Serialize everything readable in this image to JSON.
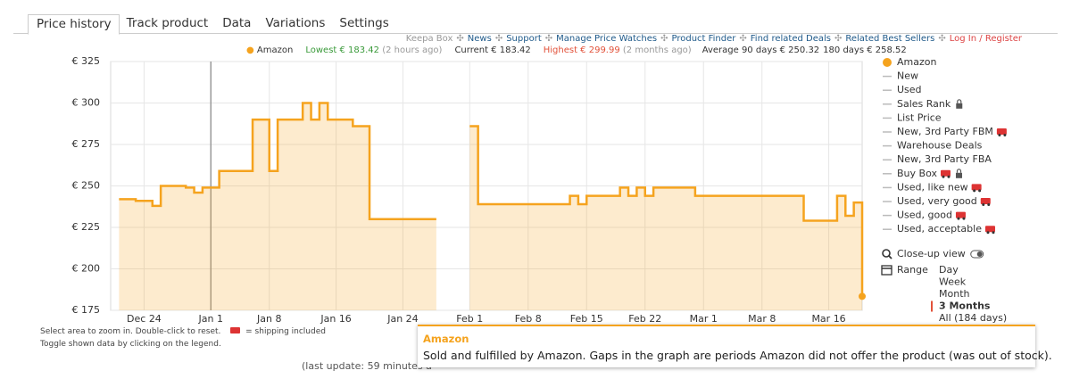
{
  "tabs": [
    "Price history",
    "Track product",
    "Data",
    "Variations",
    "Settings"
  ],
  "active_tab": 0,
  "top_links": [
    "Keepa Box",
    "News",
    "Support",
    "Manage Price Watches",
    "Product Finder",
    "Find related Deals",
    "Related Best Sellers",
    "Log In / Register"
  ],
  "stats": {
    "series": "Amazon",
    "lowest": "Lowest € 183.42",
    "lowest_time": "(2 hours ago)",
    "current": "Current € 183.42",
    "highest": "Highest € 299.99",
    "highest_time": "(2 months ago)",
    "average_90": "Average 90 days € 250.32",
    "average_180": "180 days € 258.52"
  },
  "chart_data": {
    "type": "line",
    "step": true,
    "area": true,
    "grid": true,
    "year_marker": "Jan 1",
    "x": [
      "Dec 21",
      "Dec 23",
      "Dec 25",
      "Dec 26",
      "Dec 29",
      "Dec 30",
      "Dec 31",
      "Jan 2",
      "Jan 6",
      "Jan 8",
      "Jan 9",
      "Jan 12",
      "Jan 13",
      "Jan 14",
      "Jan 15",
      "Jan 18",
      "Jan 20",
      "Jan 28",
      "Feb 1",
      "Feb 2",
      "Feb 13",
      "Feb 14",
      "Feb 15",
      "Feb 19",
      "Feb 20",
      "Feb 21",
      "Feb 22",
      "Feb 23",
      "Feb 28",
      "Mar 13",
      "Mar 17",
      "Mar 18",
      "Mar 19",
      "Mar 20"
    ],
    "series": [
      {
        "name": "Amazon",
        "color": "#f5a31e",
        "values": [
          242,
          241,
          238,
          250,
          249,
          246,
          249,
          259,
          290,
          259,
          290,
          300,
          290,
          300,
          290,
          286,
          230,
          null,
          286,
          239,
          244,
          239,
          244,
          249,
          244,
          249,
          244,
          249,
          244,
          229,
          244,
          232,
          240,
          183.42
        ]
      }
    ],
    "xlim": [
      "Dec 20",
      "Mar 20"
    ],
    "xticks": [
      "Dec 24",
      "Jan 1",
      "Jan 8",
      "Jan 16",
      "Jan 24",
      "Feb 1",
      "Feb 8",
      "Feb 15",
      "Feb 22",
      "Mar 1",
      "Mar 8",
      "Mar 16"
    ],
    "ylim": [
      175,
      325
    ],
    "yticks": [
      {
        "value": 175,
        "label": "€ 175"
      },
      {
        "value": 200,
        "label": "€ 200"
      },
      {
        "value": 225,
        "label": "€ 225"
      },
      {
        "value": 250,
        "label": "€ 250"
      },
      {
        "value": 275,
        "label": "€ 275"
      },
      {
        "value": 300,
        "label": "€ 300"
      },
      {
        "value": 325,
        "label": "€ 325"
      }
    ]
  },
  "legend_items": [
    {
      "label": "New",
      "shipping": false,
      "locked": false
    },
    {
      "label": "Used",
      "shipping": false,
      "locked": false
    },
    {
      "label": "Sales Rank",
      "shipping": false,
      "locked": true
    },
    {
      "label": "List Price",
      "shipping": false,
      "locked": false
    },
    {
      "label": "New, 3rd Party FBM",
      "shipping": true,
      "locked": false
    },
    {
      "label": "Warehouse Deals",
      "shipping": false,
      "locked": false
    },
    {
      "label": "New, 3rd Party FBA",
      "shipping": false,
      "locked": false
    },
    {
      "label": "Buy Box",
      "shipping": true,
      "locked": true
    },
    {
      "label": "Used, like new",
      "shipping": true,
      "locked": false
    },
    {
      "label": "Used, very good",
      "shipping": true,
      "locked": false
    },
    {
      "label": "Used, good",
      "shipping": true,
      "locked": false
    },
    {
      "label": "Used, acceptable",
      "shipping": true,
      "locked": false
    }
  ],
  "close_up": "Close-up view",
  "range": {
    "label": "Range",
    "options": [
      "Day",
      "Week",
      "Month",
      "3 Months",
      "All (184 days)"
    ],
    "active": 3
  },
  "notes": {
    "zoom": "Select area to zoom in. Double-click to reset.",
    "shipping": "= shipping included",
    "toggle": "Toggle shown data by clicking on the legend."
  },
  "tooltip": {
    "title": "Amazon",
    "text": "Sold and fulfilled by Amazon. Gaps in the graph are periods Amazon did not offer the product (was out of stock)."
  },
  "last_update": "(last update: 59 minutes a"
}
